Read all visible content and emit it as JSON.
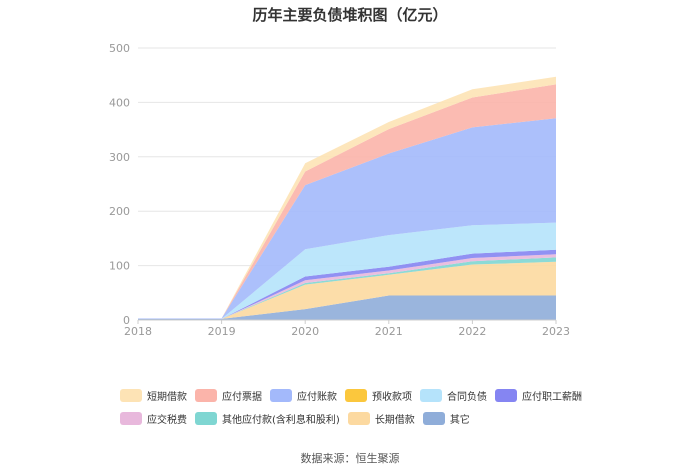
{
  "chart_data": {
    "type": "area",
    "stacked": true,
    "title": "历年主要负债堆积图（亿元）",
    "x": [
      "2018",
      "2019",
      "2020",
      "2021",
      "2022",
      "2023"
    ],
    "ylim": [
      0,
      500
    ],
    "yticks": [
      0,
      100,
      200,
      300,
      400,
      500
    ],
    "grid": true,
    "legend_position": "bottom",
    "series": [
      {
        "name": "其它",
        "color": "#8fadd9",
        "values": [
          2,
          2,
          20,
          45,
          45,
          45
        ]
      },
      {
        "name": "长期借款",
        "color": "#fcd9a0",
        "values": [
          0,
          0,
          45,
          38,
          57,
          62
        ]
      },
      {
        "name": "其他应付款(含利息和股利)",
        "color": "#7fd6d2",
        "values": [
          0,
          0,
          3,
          3,
          6,
          8
        ]
      },
      {
        "name": "应交税费",
        "color": "#e8b8dc",
        "values": [
          0,
          0,
          5,
          5,
          6,
          6
        ]
      },
      {
        "name": "应付职工薪酬",
        "color": "#8585f2",
        "values": [
          0,
          0,
          7,
          7,
          8,
          8
        ]
      },
      {
        "name": "合同负债",
        "color": "#b5e3fb",
        "values": [
          0,
          0,
          50,
          58,
          52,
          50
        ]
      },
      {
        "name": "预收款项",
        "color": "#fbc73d",
        "values": [
          0,
          0,
          0,
          0,
          0,
          0
        ]
      },
      {
        "name": "应付账款",
        "color": "#a3b9fb",
        "values": [
          1,
          1,
          118,
          150,
          180,
          192
        ]
      },
      {
        "name": "应付票据",
        "color": "#fbb4aa",
        "values": [
          0,
          0,
          25,
          45,
          55,
          62
        ]
      },
      {
        "name": "短期借款",
        "color": "#fde3b5",
        "values": [
          0,
          0,
          15,
          13,
          15,
          14
        ]
      }
    ],
    "legend_order": [
      "短期借款",
      "应付票据",
      "应付账款",
      "预收款项",
      "合同负债",
      "应付职工薪酬",
      "应交税费",
      "其他应付款(含利息和股利)",
      "长期借款",
      "其它"
    ]
  },
  "footer": {
    "source": "数据来源：恒生聚源"
  }
}
